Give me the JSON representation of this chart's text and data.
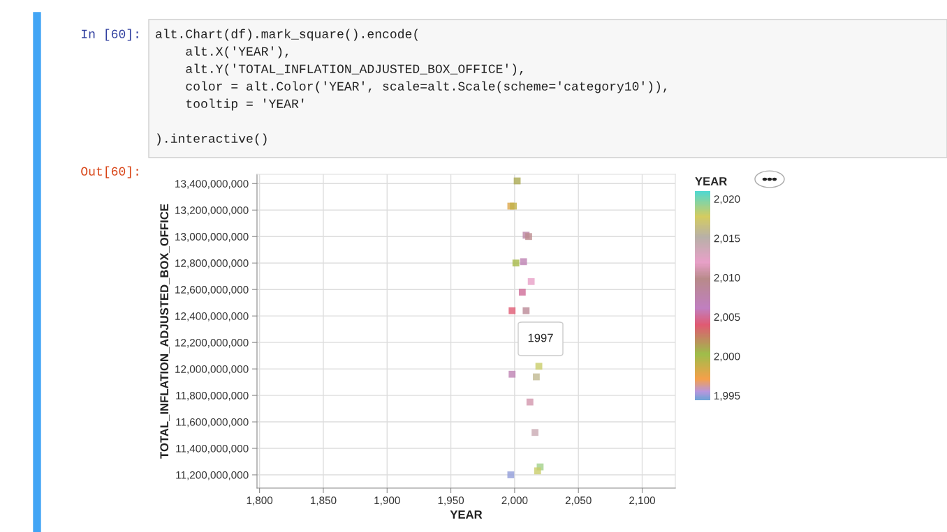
{
  "chart_data": {
    "type": "scatter",
    "xlabel": "YEAR",
    "ylabel": "TOTAL_INFLATION_ADJUSTED_BOX_OFFICE",
    "clabel": "YEAR",
    "x": [
      2002,
      1997,
      1999,
      2009,
      2011,
      2001,
      2007,
      2013,
      2006,
      1998,
      2009,
      2019,
      1998,
      2017,
      2012,
      2016,
      2020,
      2018,
      1997
    ],
    "values": [
      13420000000,
      13230000000,
      13230000000,
      13010000000,
      13000000000,
      12800000000,
      12810000000,
      12660000000,
      12580000000,
      12440000000,
      12440000000,
      12020000000,
      11960000000,
      11940000000,
      11750000000,
      11520000000,
      11260000000,
      11230000000,
      11200000000
    ],
    "cvalues": [
      2001,
      1998,
      1999,
      2008,
      2010,
      2000,
      2007,
      2012,
      2005,
      2004,
      2009,
      2018,
      2007,
      2016,
      2011,
      2014,
      2019,
      2018,
      1995
    ],
    "marker": "square",
    "xlim": [
      1798,
      2126
    ],
    "ylim": [
      11100000000,
      13470000000
    ],
    "xticks": [
      {
        "value": 1800,
        "label": "1,800"
      },
      {
        "value": 1850,
        "label": "1,850"
      },
      {
        "value": 1900,
        "label": "1,900"
      },
      {
        "value": 1950,
        "label": "1,950"
      },
      {
        "value": 2000,
        "label": "2,000"
      },
      {
        "value": 2050,
        "label": "2,050"
      },
      {
        "value": 2100,
        "label": "2,100"
      }
    ],
    "yticks": [
      {
        "value": 11200000000,
        "label": "11,200,000,000"
      },
      {
        "value": 11400000000,
        "label": "11,400,000,000"
      },
      {
        "value": 11600000000,
        "label": "11,600,000,000"
      },
      {
        "value": 11800000000,
        "label": "11,800,000,000"
      },
      {
        "value": 12000000000,
        "label": "12,000,000,000"
      },
      {
        "value": 12200000000,
        "label": "12,200,000,000"
      },
      {
        "value": 12400000000,
        "label": "12,400,000,000"
      },
      {
        "value": 12600000000,
        "label": "12,600,000,000"
      },
      {
        "value": 12800000000,
        "label": "12,800,000,000"
      },
      {
        "value": 13000000000,
        "label": "13,000,000,000"
      },
      {
        "value": 13200000000,
        "label": "13,200,000,000"
      },
      {
        "value": 13400000000,
        "label": "13,400,000,000"
      }
    ],
    "clim": [
      1994.4,
      2021
    ],
    "cticks": [
      {
        "value": 1995,
        "label": "1,995"
      },
      {
        "value": 2000,
        "label": "2,000"
      },
      {
        "value": 2005,
        "label": "2,005"
      },
      {
        "value": 2010,
        "label": "2,010"
      },
      {
        "value": 2015,
        "label": "2,015"
      },
      {
        "value": 2020,
        "label": "2,020"
      }
    ],
    "grid": true,
    "annotations": [
      "In [60]:",
      "alt.Chart(df).mark_square().encode(",
      "    alt.X('YEAR'),",
      "    alt.Y('TOTAL_INFLATION_ADJUSTED_BOX_OFFICE'),",
      "    color = alt.Color('YEAR', scale=alt.Scale(scheme='category10')),",
      "    tooltip = 'YEAR'",
      ").interactive()",
      "Out[60]:",
      "1997"
    ]
  }
}
